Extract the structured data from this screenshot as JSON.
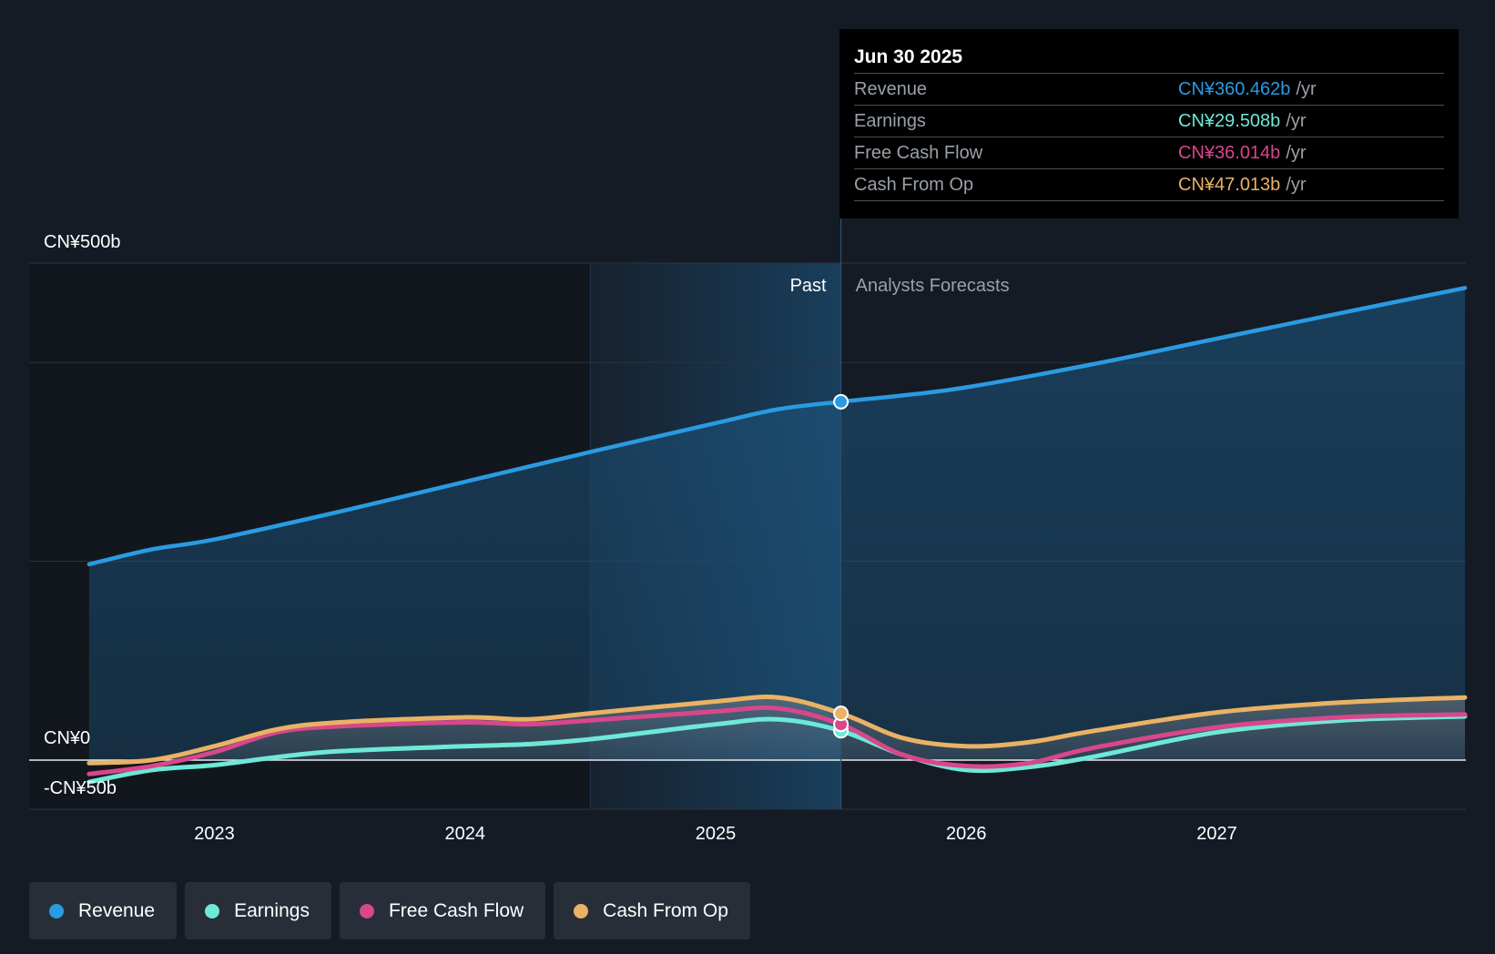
{
  "chart_data": {
    "type": "area",
    "title": "",
    "x_ticks": [
      "2023",
      "2024",
      "2025",
      "2026",
      "2027"
    ],
    "y_labels": [
      {
        "value": 500,
        "text": "CN¥500b"
      },
      {
        "value": 0,
        "text": "CN¥0"
      },
      {
        "value": -50,
        "text": "-CN¥50b"
      }
    ],
    "ylim": [
      -50,
      500
    ],
    "xlim": [
      2022.4,
      2027.99
    ],
    "past_label": "Past",
    "forecast_label": "Analysts Forecasts",
    "divider_x": 2025.5,
    "past_shade_start": 2024.5,
    "series": [
      {
        "name": "Revenue",
        "color": "#2a9be2",
        "points": [
          [
            2022.5,
            197
          ],
          [
            2022.75,
            212
          ],
          [
            2023.0,
            222
          ],
          [
            2023.5,
            250
          ],
          [
            2024.0,
            280
          ],
          [
            2024.5,
            310
          ],
          [
            2025.0,
            339
          ],
          [
            2025.25,
            353
          ],
          [
            2025.5,
            360.5
          ],
          [
            2025.75,
            367
          ],
          [
            2026.0,
            375
          ],
          [
            2026.5,
            398
          ],
          [
            2027.0,
            424
          ],
          [
            2027.5,
            450
          ],
          [
            2027.99,
            475
          ]
        ]
      },
      {
        "name": "Earnings",
        "color": "#6ee8d8",
        "points": [
          [
            2022.5,
            -22
          ],
          [
            2022.75,
            -10
          ],
          [
            2023.0,
            -5
          ],
          [
            2023.25,
            3
          ],
          [
            2023.5,
            9
          ],
          [
            2024.0,
            14
          ],
          [
            2024.25,
            16
          ],
          [
            2024.5,
            21
          ],
          [
            2025.0,
            36
          ],
          [
            2025.25,
            41
          ],
          [
            2025.5,
            29.5
          ],
          [
            2025.75,
            5
          ],
          [
            2026.0,
            -10
          ],
          [
            2026.25,
            -7
          ],
          [
            2026.5,
            3
          ],
          [
            2027.0,
            28
          ],
          [
            2027.5,
            40
          ],
          [
            2027.99,
            44
          ]
        ]
      },
      {
        "name": "Free Cash Flow",
        "color": "#d8478b",
        "points": [
          [
            2022.5,
            -14
          ],
          [
            2022.75,
            -6
          ],
          [
            2023.0,
            8
          ],
          [
            2023.25,
            28
          ],
          [
            2023.5,
            34
          ],
          [
            2024.0,
            38
          ],
          [
            2024.25,
            36
          ],
          [
            2024.5,
            40
          ],
          [
            2025.0,
            49
          ],
          [
            2025.25,
            52
          ],
          [
            2025.5,
            36
          ],
          [
            2025.75,
            5
          ],
          [
            2026.0,
            -6
          ],
          [
            2026.25,
            -3
          ],
          [
            2026.5,
            12
          ],
          [
            2027.0,
            33
          ],
          [
            2027.5,
            43
          ],
          [
            2027.99,
            46
          ]
        ]
      },
      {
        "name": "Cash From Op",
        "color": "#e9b264",
        "points": [
          [
            2022.5,
            -3
          ],
          [
            2022.75,
            0
          ],
          [
            2023.0,
            14
          ],
          [
            2023.25,
            31
          ],
          [
            2023.5,
            38
          ],
          [
            2024.0,
            43
          ],
          [
            2024.25,
            41
          ],
          [
            2024.5,
            47
          ],
          [
            2025.0,
            59
          ],
          [
            2025.25,
            63
          ],
          [
            2025.5,
            47
          ],
          [
            2025.75,
            22
          ],
          [
            2026.0,
            14
          ],
          [
            2026.25,
            18
          ],
          [
            2026.5,
            29
          ],
          [
            2027.0,
            48
          ],
          [
            2027.5,
            58
          ],
          [
            2027.99,
            63
          ]
        ]
      }
    ]
  },
  "tooltip": {
    "date": "Jun 30 2025",
    "unit": "/yr",
    "rows": [
      {
        "label": "Revenue",
        "value": "CN¥360.462b",
        "color": "#2a9be2"
      },
      {
        "label": "Earnings",
        "value": "CN¥29.508b",
        "color": "#6ee8d8"
      },
      {
        "label": "Free Cash Flow",
        "value": "CN¥36.014b",
        "color": "#d8478b"
      },
      {
        "label": "Cash From Op",
        "value": "CN¥47.013b",
        "color": "#e9b264"
      }
    ]
  },
  "legend": [
    {
      "label": "Revenue",
      "color": "#2a9be2"
    },
    {
      "label": "Earnings",
      "color": "#6ee8d8"
    },
    {
      "label": "Free Cash Flow",
      "color": "#d8478b"
    },
    {
      "label": "Cash From Op",
      "color": "#e9b264"
    }
  ]
}
